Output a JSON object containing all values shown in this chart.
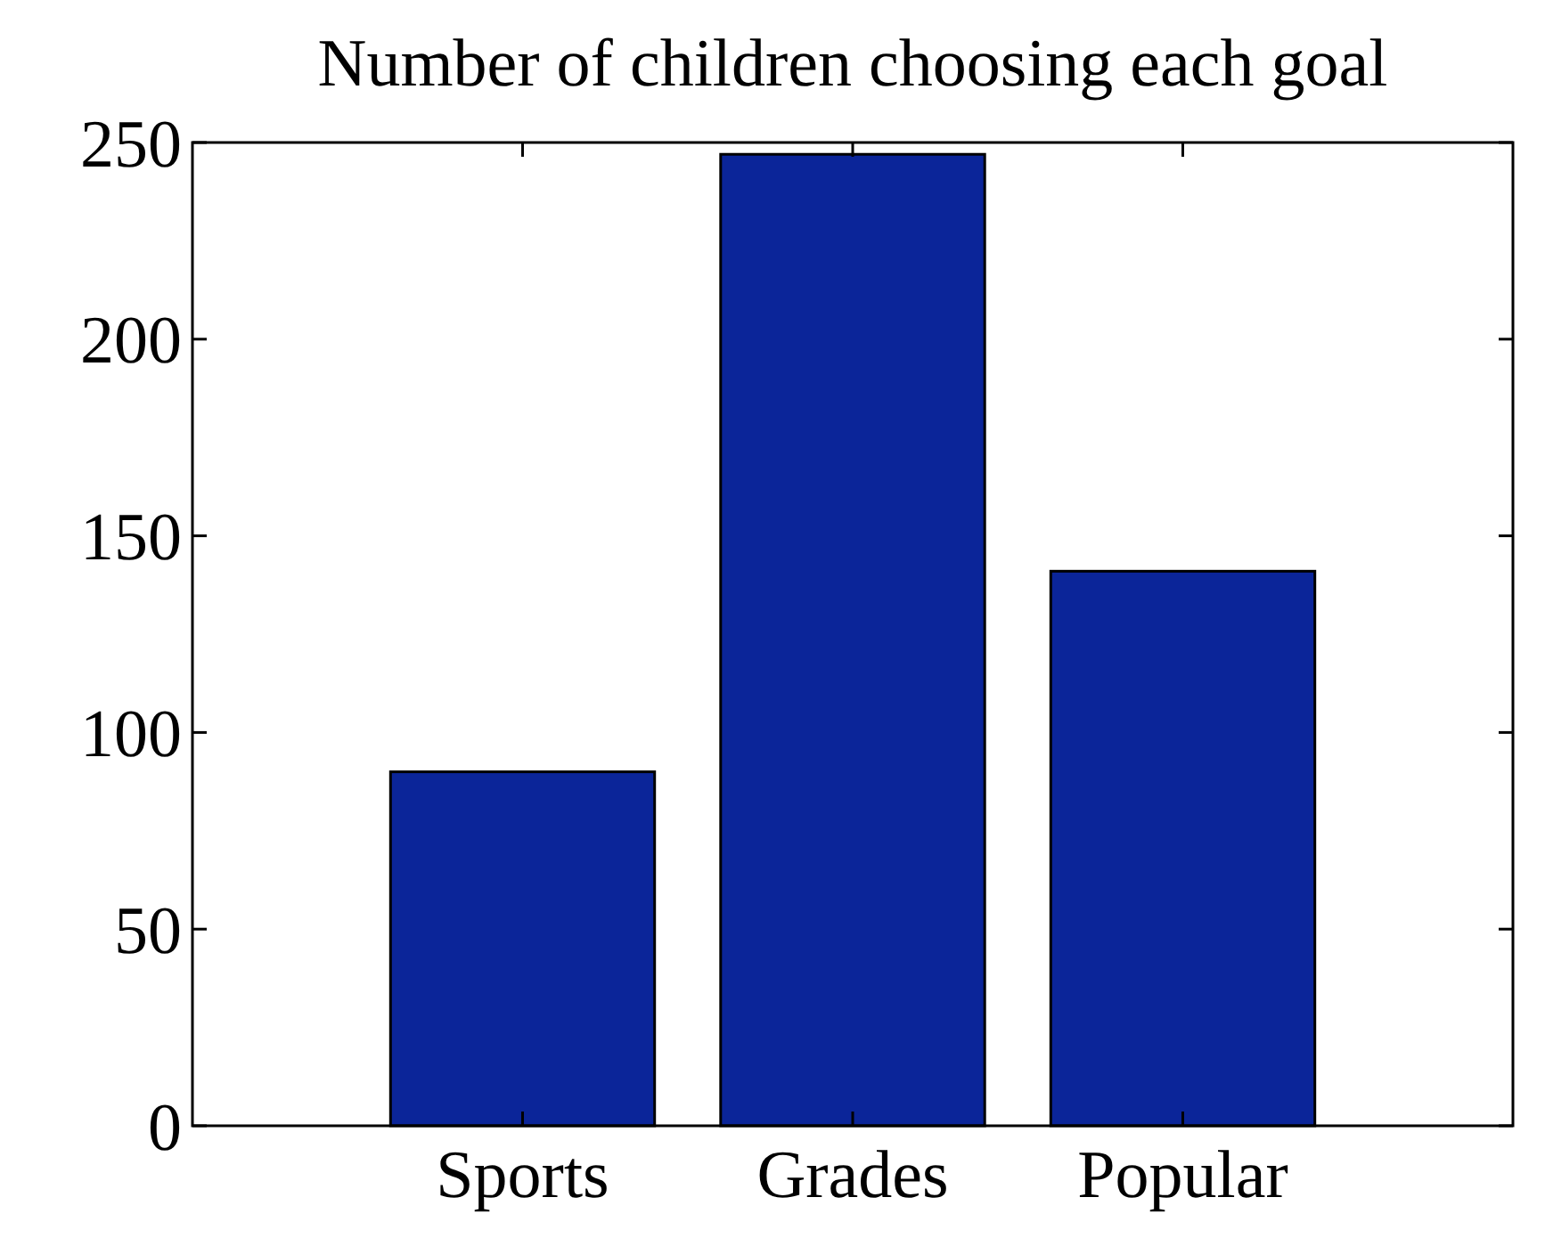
{
  "chart_data": {
    "type": "bar",
    "title": "Number of children choosing each goal",
    "categories": [
      "Sports",
      "Grades",
      "Popular"
    ],
    "values": [
      90,
      247,
      141
    ],
    "color": "#0b2599",
    "ylim": [
      0,
      250
    ],
    "yticks": [
      0,
      50,
      100,
      150,
      200,
      250
    ],
    "grid": false
  }
}
